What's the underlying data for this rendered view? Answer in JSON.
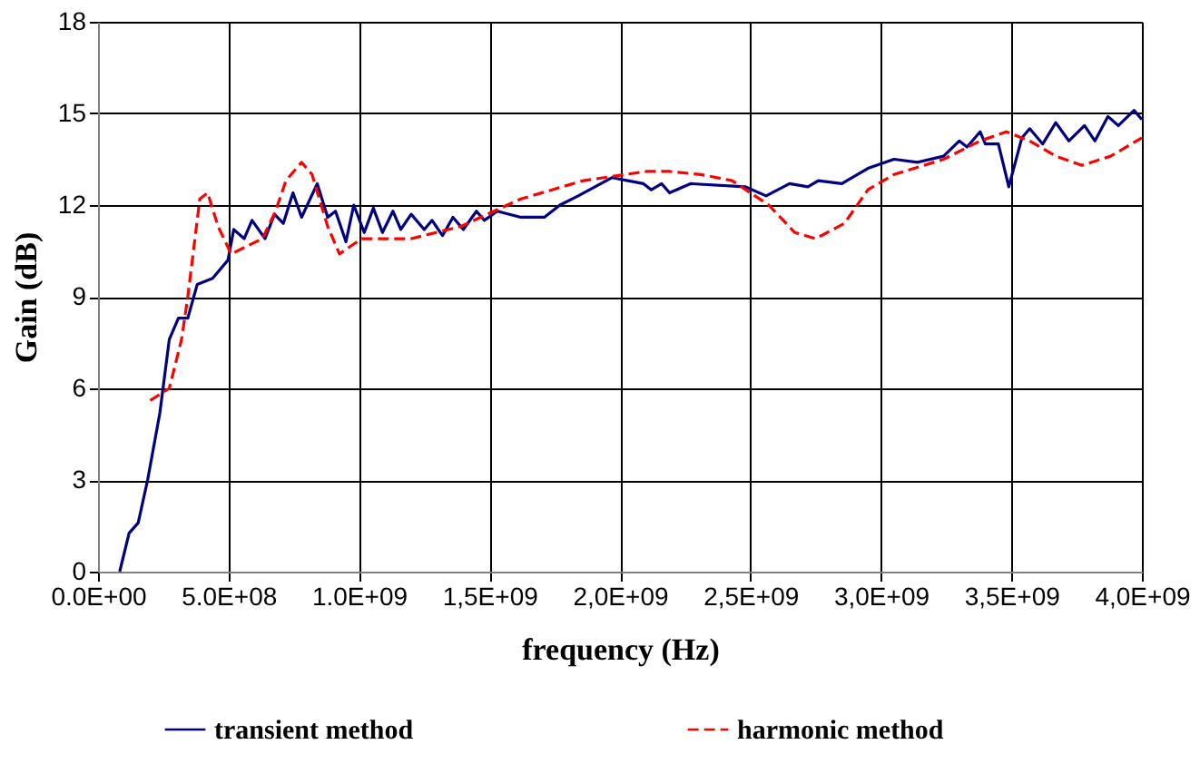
{
  "chart_data": {
    "type": "line",
    "xlabel": "frequency (Hz)",
    "ylabel": "Gain (dB)",
    "xlim": [
      0,
      4000000000
    ],
    "ylim": [
      0,
      18
    ],
    "xticks": [
      {
        "value": 0,
        "label": "0.0E+00"
      },
      {
        "value": 500000000,
        "label": "5.0E+08"
      },
      {
        "value": 1000000000,
        "label": "1.0E+09"
      },
      {
        "value": 1500000000,
        "label": "1,5E+09"
      },
      {
        "value": 2000000000,
        "label": "2,0E+09"
      },
      {
        "value": 2500000000,
        "label": "2,5E+09"
      },
      {
        "value": 3000000000,
        "label": "3,0E+09"
      },
      {
        "value": 3500000000,
        "label": "3,5E+09"
      },
      {
        "value": 4000000000,
        "label": "4,0E+09"
      }
    ],
    "yticks": [
      0,
      3,
      6,
      9,
      12,
      15,
      18
    ],
    "grid": true,
    "legend": "bottom",
    "marker": "none",
    "series": [
      {
        "name": "transient method",
        "color": "#000080",
        "line_style": "solid",
        "x": [
          83000000,
          119000000,
          154000000,
          190000000,
          237000000,
          273000000,
          308000000,
          344000000,
          380000000,
          439000000,
          498000000,
          520000000,
          560000000,
          590000000,
          640000000,
          676000000,
          710000000,
          747000000,
          780000000,
          840000000,
          880000000,
          910000000,
          950000000,
          980000000,
          1020000000,
          1055000000,
          1090000000,
          1130000000,
          1160000000,
          1200000000,
          1250000000,
          1280000000,
          1320000000,
          1360000000,
          1400000000,
          1450000000,
          1480000000,
          1530000000,
          1620000000,
          1710000000,
          1770000000,
          1840000000,
          1970000000,
          2030000000,
          2090000000,
          2120000000,
          2160000000,
          2190000000,
          2270000000,
          2480000000,
          2560000000,
          2650000000,
          2720000000,
          2760000000,
          2850000000,
          2950000000,
          3050000000,
          3140000000,
          3240000000,
          3300000000,
          3330000000,
          3380000000,
          3400000000,
          3450000000,
          3490000000,
          3540000000,
          3570000000,
          3620000000,
          3670000000,
          3720000000,
          3780000000,
          3820000000,
          3870000000,
          3910000000,
          3970000000,
          4000000000
        ],
        "values": [
          0,
          1.26,
          1.6,
          3.0,
          5.2,
          7.6,
          8.3,
          8.3,
          9.4,
          9.6,
          10.2,
          11.2,
          10.9,
          11.5,
          10.9,
          11.7,
          11.4,
          12.4,
          11.6,
          12.7,
          11.6,
          11.8,
          10.8,
          12.0,
          11.1,
          11.9,
          11.1,
          11.8,
          11.2,
          11.7,
          11.2,
          11.5,
          11.0,
          11.6,
          11.2,
          11.8,
          11.5,
          11.8,
          11.6,
          11.6,
          12.0,
          12.3,
          12.9,
          12.8,
          12.7,
          12.5,
          12.7,
          12.4,
          12.7,
          12.6,
          12.3,
          12.7,
          12.6,
          12.8,
          12.7,
          13.2,
          13.5,
          13.4,
          13.6,
          14.1,
          13.9,
          14.4,
          14.0,
          14.0,
          12.6,
          14.2,
          14.5,
          14.0,
          14.7,
          14.1,
          14.6,
          14.1,
          14.9,
          14.6,
          15.1,
          14.8
        ]
      },
      {
        "name": "harmonic method",
        "color": "#ff0000",
        "line_style": "dashed",
        "x": [
          200000000,
          273000000,
          320000000,
          344000000,
          390000000,
          420000000,
          460000000,
          510000000,
          630000000,
          680000000,
          720000000,
          780000000,
          820000000,
          880000000,
          925000000,
          1010000000,
          1200000000,
          1390000000,
          1620000000,
          1860000000,
          2100000000,
          2190000000,
          2310000000,
          2430000000,
          2570000000,
          2670000000,
          2750000000,
          2860000000,
          2950000000,
          3050000000,
          3240000000,
          3380000000,
          3480000000,
          3570000000,
          3670000000,
          3770000000,
          3880000000,
          4000000000
        ],
        "values": [
          5.6,
          6.0,
          7.6,
          9.0,
          12.2,
          12.4,
          11.3,
          10.4,
          10.9,
          11.8,
          12.8,
          13.4,
          13.0,
          11.3,
          10.4,
          10.9,
          10.9,
          11.3,
          12.2,
          12.8,
          13.1,
          13.1,
          13.0,
          12.8,
          12.0,
          11.1,
          10.9,
          11.4,
          12.5,
          13.0,
          13.5,
          14.1,
          14.4,
          14.1,
          13.6,
          13.3,
          13.6,
          14.2
        ]
      }
    ]
  }
}
